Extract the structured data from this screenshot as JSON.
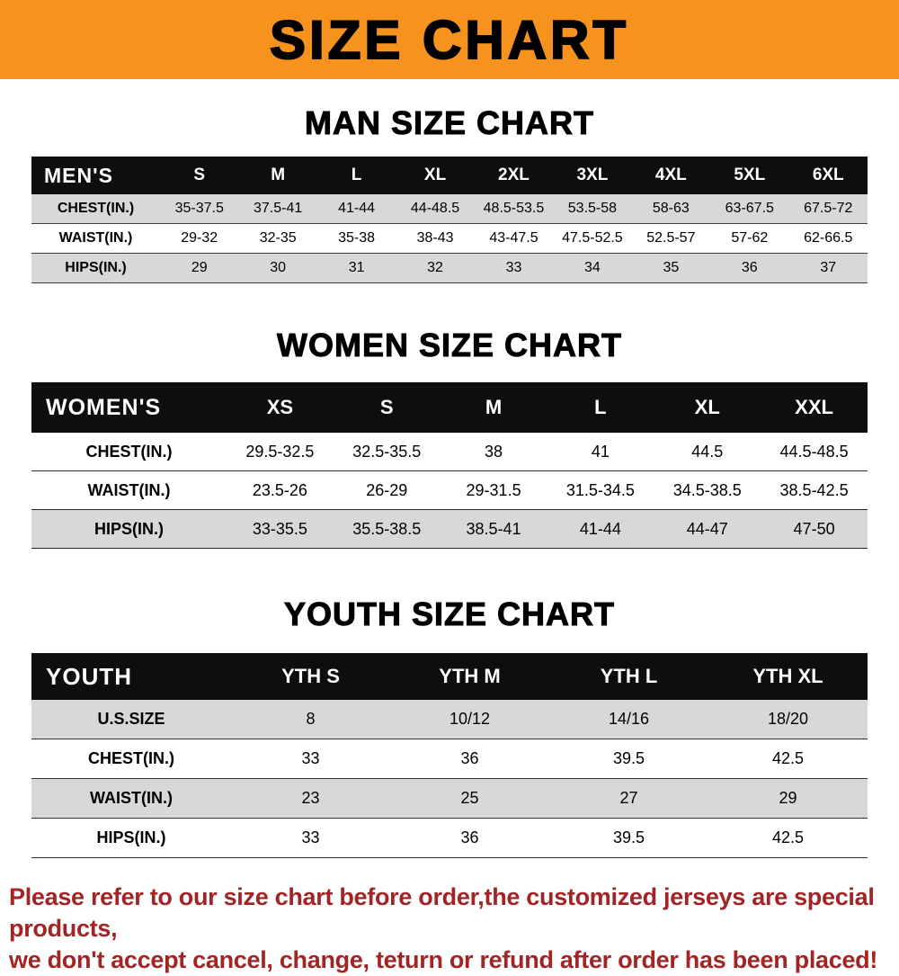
{
  "banner": {
    "title": "SIZE CHART",
    "bg_color": "#f6921e"
  },
  "sections": [
    {
      "heading": "MAN SIZE CHART",
      "table": {
        "header": [
          "MEN'S",
          "S",
          "M",
          "L",
          "XL",
          "2XL",
          "3XL",
          "4XL",
          "5XL",
          "6XL"
        ],
        "rows": [
          [
            "CHEST(IN.)",
            "35-37.5",
            "37.5-41",
            "41-44",
            "44-48.5",
            "48.5-53.5",
            "53.5-58",
            "58-63",
            "63-67.5",
            "67.5-72"
          ],
          [
            "WAIST(IN.)",
            "29-32",
            "32-35",
            "35-38",
            "38-43",
            "43-47.5",
            "47.5-52.5",
            "52.5-57",
            "57-62",
            "62-66.5"
          ],
          [
            "HIPS(IN.)",
            "29",
            "30",
            "31",
            "32",
            "33",
            "34",
            "35",
            "36",
            "37"
          ]
        ]
      }
    },
    {
      "heading": "WOMEN SIZE CHART",
      "table": {
        "header": [
          "WOMEN'S",
          "XS",
          "S",
          "M",
          "L",
          "XL",
          "XXL"
        ],
        "rows": [
          [
            "CHEST(IN.)",
            "29.5-32.5",
            "32.5-35.5",
            "38",
            "41",
            "44.5",
            "44.5-48.5"
          ],
          [
            "WAIST(IN.)",
            "23.5-26",
            "26-29",
            "29-31.5",
            "31.5-34.5",
            "34.5-38.5",
            "38.5-42.5"
          ],
          [
            "HIPS(IN.)",
            "33-35.5",
            "35.5-38.5",
            "38.5-41",
            "41-44",
            "44-47",
            "47-50"
          ]
        ]
      }
    },
    {
      "heading": "YOUTH SIZE CHART",
      "table": {
        "header": [
          "YOUTH",
          "YTH S",
          "YTH M",
          "YTH L",
          "YTH XL"
        ],
        "rows": [
          [
            "U.S.SIZE",
            "8",
            "10/12",
            "14/16",
            "18/20"
          ],
          [
            "CHEST(IN.)",
            "33",
            "36",
            "39.5",
            "42.5"
          ],
          [
            "WAIST(IN.)",
            "23",
            "25",
            "27",
            "29"
          ],
          [
            "HIPS(IN.)",
            "33",
            "36",
            "39.5",
            "42.5"
          ]
        ]
      }
    }
  ],
  "disclaimer": {
    "line1": "Please refer to our size chart before order,the customized jerseys are special products,",
    "line2": "we don't accept cancel, change, teturn or refund after order has been placed!",
    "text_color": "#a32424"
  }
}
